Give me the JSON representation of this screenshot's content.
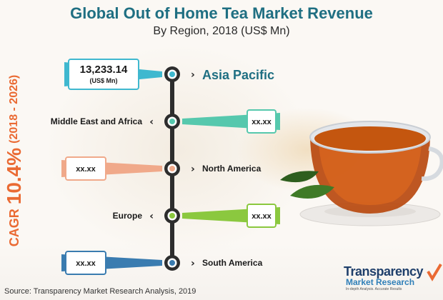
{
  "title": "Global Out of Home Tea Market Revenue",
  "subtitle": "By Region, 2018 (US$ Mn)",
  "cagr": {
    "prefix": "CAGR",
    "value": "10.4%",
    "period": "(2018 - 2026)"
  },
  "source": "Source: Transparency Market Research Analysis, 2019",
  "logo": {
    "name": "Transparency",
    "sub": "Market Research",
    "tagline": "In-depth Analysis. Accurate Results"
  },
  "colors": {
    "title": "#1f6f82",
    "cagr": "#ea6a33",
    "spine": "#2d2d2d"
  },
  "chart_data": {
    "type": "table",
    "title": "Global Out of Home Tea Market Revenue",
    "subtitle": "By Region, 2018 (US$ Mn)",
    "unit": "(US$ Mn)",
    "regions": [
      {
        "name": "Asia Pacific",
        "value": "13,233.14",
        "side": "left",
        "color": "#3fb8cf"
      },
      {
        "name": "Middle East and Africa",
        "value": "xx.xx",
        "side": "right",
        "color": "#56c8ad"
      },
      {
        "name": "North America",
        "value": "xx.xx",
        "side": "left",
        "color": "#f0a98a"
      },
      {
        "name": "Europe",
        "value": "xx.xx",
        "side": "right",
        "color": "#8bc83f"
      },
      {
        "name": "South America",
        "value": "xx.xx",
        "side": "left",
        "color": "#3a7cb0"
      }
    ]
  }
}
